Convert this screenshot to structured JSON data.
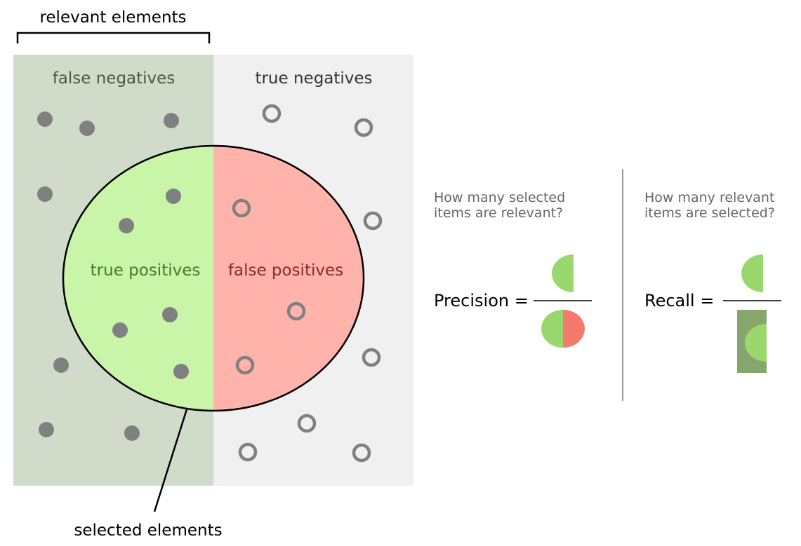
{
  "labels": {
    "relevant_elements": "relevant elements",
    "false_negatives": "false negatives",
    "true_negatives": "true negatives",
    "true_positives": "true positives",
    "false_positives": "false positives",
    "selected_elements": "selected elements"
  },
  "precision": {
    "question_line1": "How many selected",
    "question_line2": "items are relevant?",
    "formula_label": "Precision ="
  },
  "recall": {
    "question_line1": "How many relevant",
    "question_line2": "items are selected?",
    "formula_label": "Recall ="
  },
  "colors": {
    "relevant_bg": "#d1dbca",
    "negatives_bg": "#f0f0f0",
    "true_positive": "#c8f5a8",
    "false_positive": "#ffb3aa",
    "tp_text": "#4a7a28",
    "fp_text": "#8b2a22",
    "fn_text": "#4a5a40",
    "tn_text": "#333333",
    "dot": "#808080",
    "icon_green": "#9ad86e",
    "icon_red": "#f47a6e",
    "icon_dark_green": "#87a66e"
  }
}
